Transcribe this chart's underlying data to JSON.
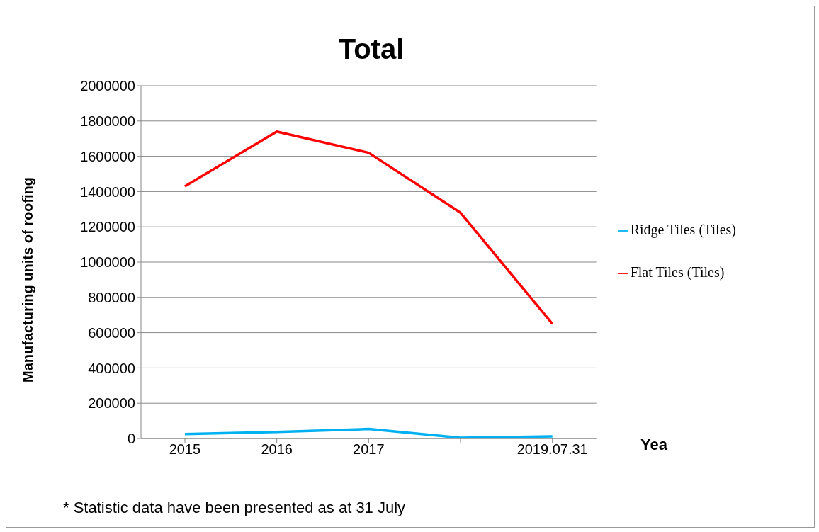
{
  "chart_data": {
    "type": "line",
    "title": "Total",
    "xlabel": "Yea",
    "ylabel": "Manufacturing units of roofing",
    "categories": [
      "2015",
      "2016",
      "2017",
      null,
      "2019.07.31"
    ],
    "series": [
      {
        "name": "Ridge Tiles (Tiles)",
        "color": "#00b0f0",
        "values": [
          25000,
          37000,
          54000,
          4000,
          12000
        ]
      },
      {
        "name": "Flat Tiles (Tiles)",
        "color": "#ff0000",
        "values": [
          1430000,
          1740000,
          1620000,
          1280000,
          650000
        ]
      }
    ],
    "ylim": [
      0,
      2000000
    ],
    "yticks": [
      0,
      200000,
      400000,
      600000,
      800000,
      1000000,
      1200000,
      1400000,
      1600000,
      1800000,
      2000000
    ],
    "grid": "y",
    "legend": "right",
    "marker": "none",
    "line_style": "solid",
    "annotations": [
      "* Statistic data have been presented as at 31 July"
    ]
  }
}
